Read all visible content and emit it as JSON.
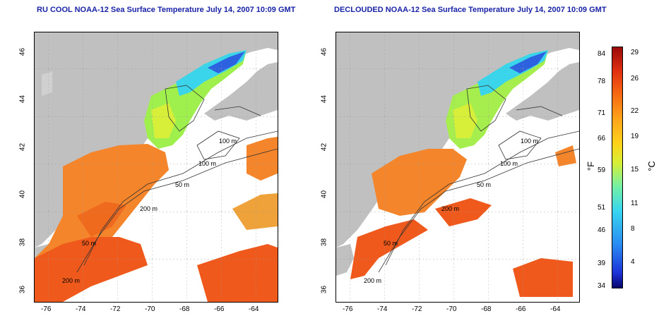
{
  "panels": [
    {
      "title": "RU COOL NOAA-12 Sea Surface Temperature July 14, 2007 10:09 GMT"
    },
    {
      "title": "DECLOUDED NOAA-12 Sea Surface Temperature July 14, 2007 10:09 GMT"
    }
  ],
  "axes": {
    "x_ticks": [
      "-76",
      "-74",
      "-72",
      "-70",
      "-68",
      "-66",
      "-64"
    ],
    "y_ticks": [
      "36",
      "38",
      "40",
      "42",
      "44",
      "46"
    ]
  },
  "contours": {
    "left": [
      "100 m",
      "100 m",
      "50 m",
      "200 m",
      "50 m",
      "200 m"
    ],
    "right": [
      "100 m",
      "100 m",
      "50 m",
      "200 m",
      "50 m",
      "200 m"
    ]
  },
  "colorbar": {
    "fahrenheit_label": "°F",
    "celsius_label": "°C",
    "fahrenheit_ticks": [
      "84",
      "78",
      "71",
      "66",
      "59",
      "51",
      "46",
      "39",
      "34"
    ],
    "celsius_ticks": [
      "29",
      "26",
      "22",
      "19",
      "15",
      "11",
      "8",
      "4"
    ]
  },
  "colors": {
    "land": "#c0c0c0",
    "title": "#1a23a6",
    "cloud": "#ffffff"
  }
}
